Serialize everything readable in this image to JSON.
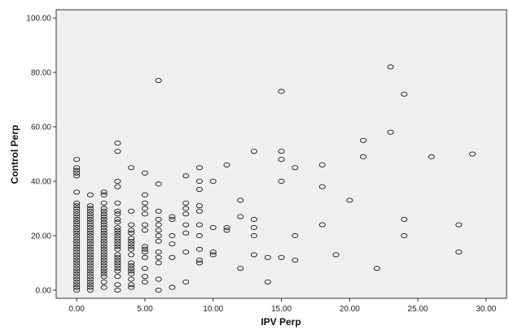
{
  "chart_data": {
    "type": "scatter",
    "xlabel": "IPV Perp",
    "ylabel": "Control Perp",
    "xlim": [
      -1.5,
      31.5
    ],
    "ylim": [
      -3,
      103
    ],
    "xticks": [
      0,
      5,
      10,
      15,
      20,
      25,
      30
    ],
    "xtick_labels": [
      "0.00",
      "5.00",
      "10.00",
      "15.00",
      "20.00",
      "25.00",
      "30.00"
    ],
    "yticks": [
      0,
      20,
      40,
      60,
      80,
      100
    ],
    "ytick_labels": [
      "0.00",
      "20.00",
      "40.00",
      "60.00",
      "80.00",
      "100.00"
    ],
    "grid": false,
    "legend": "none",
    "plot_background": "#efefef",
    "marker": "open-circle",
    "points": [
      [
        0,
        0
      ],
      [
        0,
        1
      ],
      [
        0,
        2
      ],
      [
        0,
        3
      ],
      [
        0,
        4
      ],
      [
        0,
        5
      ],
      [
        0,
        6
      ],
      [
        0,
        7
      ],
      [
        0,
        8
      ],
      [
        0,
        9
      ],
      [
        0,
        10
      ],
      [
        0,
        11
      ],
      [
        0,
        12
      ],
      [
        0,
        13
      ],
      [
        0,
        14
      ],
      [
        0,
        15
      ],
      [
        0,
        16
      ],
      [
        0,
        17
      ],
      [
        0,
        18
      ],
      [
        0,
        19
      ],
      [
        0,
        20
      ],
      [
        0,
        21
      ],
      [
        0,
        22
      ],
      [
        0,
        23
      ],
      [
        0,
        24
      ],
      [
        0,
        25
      ],
      [
        0,
        26
      ],
      [
        0,
        27
      ],
      [
        0,
        28
      ],
      [
        0,
        29
      ],
      [
        0,
        30
      ],
      [
        0,
        31
      ],
      [
        0,
        32
      ],
      [
        0,
        36
      ],
      [
        0,
        42
      ],
      [
        0,
        43
      ],
      [
        0,
        44
      ],
      [
        0,
        45
      ],
      [
        0,
        48
      ],
      [
        1,
        0
      ],
      [
        1,
        1
      ],
      [
        1,
        2
      ],
      [
        1,
        3
      ],
      [
        1,
        4
      ],
      [
        1,
        5
      ],
      [
        1,
        6
      ],
      [
        1,
        7
      ],
      [
        1,
        8
      ],
      [
        1,
        9
      ],
      [
        1,
        10
      ],
      [
        1,
        11
      ],
      [
        1,
        12
      ],
      [
        1,
        13
      ],
      [
        1,
        14
      ],
      [
        1,
        15
      ],
      [
        1,
        16
      ],
      [
        1,
        17
      ],
      [
        1,
        18
      ],
      [
        1,
        19
      ],
      [
        1,
        20
      ],
      [
        1,
        21
      ],
      [
        1,
        22
      ],
      [
        1,
        23
      ],
      [
        1,
        24
      ],
      [
        1,
        25
      ],
      [
        1,
        26
      ],
      [
        1,
        27
      ],
      [
        1,
        28
      ],
      [
        1,
        29
      ],
      [
        1,
        30
      ],
      [
        1,
        31
      ],
      [
        1,
        35
      ],
      [
        2,
        1
      ],
      [
        2,
        3
      ],
      [
        2,
        5
      ],
      [
        2,
        6
      ],
      [
        2,
        7
      ],
      [
        2,
        8
      ],
      [
        2,
        9
      ],
      [
        2,
        10
      ],
      [
        2,
        11
      ],
      [
        2,
        12
      ],
      [
        2,
        13
      ],
      [
        2,
        14
      ],
      [
        2,
        15
      ],
      [
        2,
        16
      ],
      [
        2,
        17
      ],
      [
        2,
        18
      ],
      [
        2,
        19
      ],
      [
        2,
        20
      ],
      [
        2,
        21
      ],
      [
        2,
        22
      ],
      [
        2,
        23
      ],
      [
        2,
        24
      ],
      [
        2,
        25
      ],
      [
        2,
        26
      ],
      [
        2,
        27
      ],
      [
        2,
        28
      ],
      [
        2,
        29
      ],
      [
        2,
        30
      ],
      [
        2,
        32
      ],
      [
        2,
        35
      ],
      [
        2,
        36
      ],
      [
        3,
        0
      ],
      [
        3,
        2
      ],
      [
        3,
        5
      ],
      [
        3,
        7
      ],
      [
        3,
        8
      ],
      [
        3,
        9
      ],
      [
        3,
        10
      ],
      [
        3,
        11
      ],
      [
        3,
        12
      ],
      [
        3,
        13
      ],
      [
        3,
        15
      ],
      [
        3,
        16
      ],
      [
        3,
        17
      ],
      [
        3,
        18
      ],
      [
        3,
        19
      ],
      [
        3,
        20
      ],
      [
        3,
        21
      ],
      [
        3,
        22
      ],
      [
        3,
        23
      ],
      [
        3,
        25
      ],
      [
        3,
        26
      ],
      [
        3,
        28
      ],
      [
        3,
        29
      ],
      [
        3,
        32
      ],
      [
        3,
        38
      ],
      [
        3,
        40
      ],
      [
        3,
        51
      ],
      [
        3,
        54
      ],
      [
        4,
        1
      ],
      [
        4,
        2
      ],
      [
        4,
        4
      ],
      [
        4,
        6
      ],
      [
        4,
        7
      ],
      [
        4,
        8
      ],
      [
        4,
        9
      ],
      [
        4,
        10
      ],
      [
        4,
        13
      ],
      [
        4,
        15
      ],
      [
        4,
        16
      ],
      [
        4,
        17
      ],
      [
        4,
        18
      ],
      [
        4,
        19
      ],
      [
        4,
        21
      ],
      [
        4,
        22
      ],
      [
        4,
        24
      ],
      [
        4,
        29
      ],
      [
        4,
        45
      ],
      [
        5,
        3
      ],
      [
        5,
        5
      ],
      [
        5,
        8
      ],
      [
        5,
        12
      ],
      [
        5,
        14
      ],
      [
        5,
        15
      ],
      [
        5,
        16
      ],
      [
        5,
        22
      ],
      [
        5,
        24
      ],
      [
        5,
        28
      ],
      [
        5,
        30
      ],
      [
        5,
        32
      ],
      [
        5,
        35
      ],
      [
        5,
        43
      ],
      [
        6,
        0
      ],
      [
        6,
        4
      ],
      [
        6,
        10
      ],
      [
        6,
        12
      ],
      [
        6,
        14
      ],
      [
        6,
        18
      ],
      [
        6,
        20
      ],
      [
        6,
        22
      ],
      [
        6,
        24
      ],
      [
        6,
        26
      ],
      [
        6,
        29
      ],
      [
        6,
        39
      ],
      [
        6,
        77
      ],
      [
        7,
        1
      ],
      [
        7,
        12
      ],
      [
        7,
        17
      ],
      [
        7,
        20
      ],
      [
        7,
        26
      ],
      [
        7,
        27
      ],
      [
        8,
        3
      ],
      [
        8,
        14
      ],
      [
        8,
        21
      ],
      [
        8,
        24
      ],
      [
        8,
        28
      ],
      [
        8,
        30
      ],
      [
        8,
        32
      ],
      [
        8,
        42
      ],
      [
        9,
        10
      ],
      [
        9,
        11
      ],
      [
        9,
        15
      ],
      [
        9,
        20
      ],
      [
        9,
        24
      ],
      [
        9,
        29
      ],
      [
        9,
        31
      ],
      [
        9,
        37
      ],
      [
        9,
        40
      ],
      [
        9,
        45
      ],
      [
        10,
        13
      ],
      [
        10,
        14
      ],
      [
        10,
        23
      ],
      [
        10,
        40
      ],
      [
        11,
        22
      ],
      [
        11,
        23
      ],
      [
        11,
        46
      ],
      [
        12,
        8
      ],
      [
        12,
        27
      ],
      [
        12,
        33
      ],
      [
        13,
        13
      ],
      [
        13,
        20
      ],
      [
        13,
        23
      ],
      [
        13,
        26
      ],
      [
        13,
        51
      ],
      [
        14,
        3
      ],
      [
        14,
        12
      ],
      [
        15,
        12
      ],
      [
        15,
        40
      ],
      [
        15,
        48
      ],
      [
        15,
        51
      ],
      [
        15,
        73
      ],
      [
        16,
        11
      ],
      [
        16,
        20
      ],
      [
        16,
        45
      ],
      [
        18,
        24
      ],
      [
        18,
        38
      ],
      [
        18,
        46
      ],
      [
        19,
        13
      ],
      [
        20,
        33
      ],
      [
        21,
        49
      ],
      [
        21,
        55
      ],
      [
        22,
        8
      ],
      [
        23,
        58
      ],
      [
        23,
        82
      ],
      [
        24,
        20
      ],
      [
        24,
        26
      ],
      [
        24,
        72
      ],
      [
        26,
        49
      ],
      [
        28,
        14
      ],
      [
        28,
        24
      ],
      [
        29,
        50
      ]
    ]
  }
}
